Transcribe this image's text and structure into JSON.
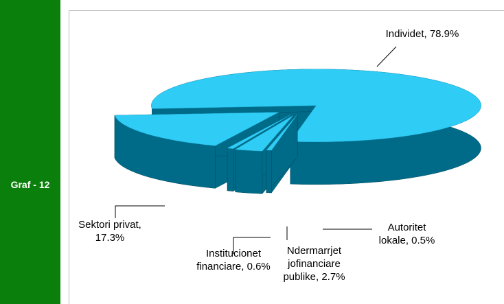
{
  "side_label": "Graf - 12",
  "chart_data": {
    "type": "pie3d",
    "color": "#2fcdf6",
    "values": [
      78.9,
      0.5,
      2.7,
      0.6,
      17.3
    ],
    "value_labels": [
      "Individet, 78.9%",
      "Autoritet lokale, 0.5%",
      "Ndermarrjet jofinanciare publike, 2.7%",
      "Institucionet financiare, 0.6%",
      "Sektori privat, 17.3%"
    ]
  }
}
